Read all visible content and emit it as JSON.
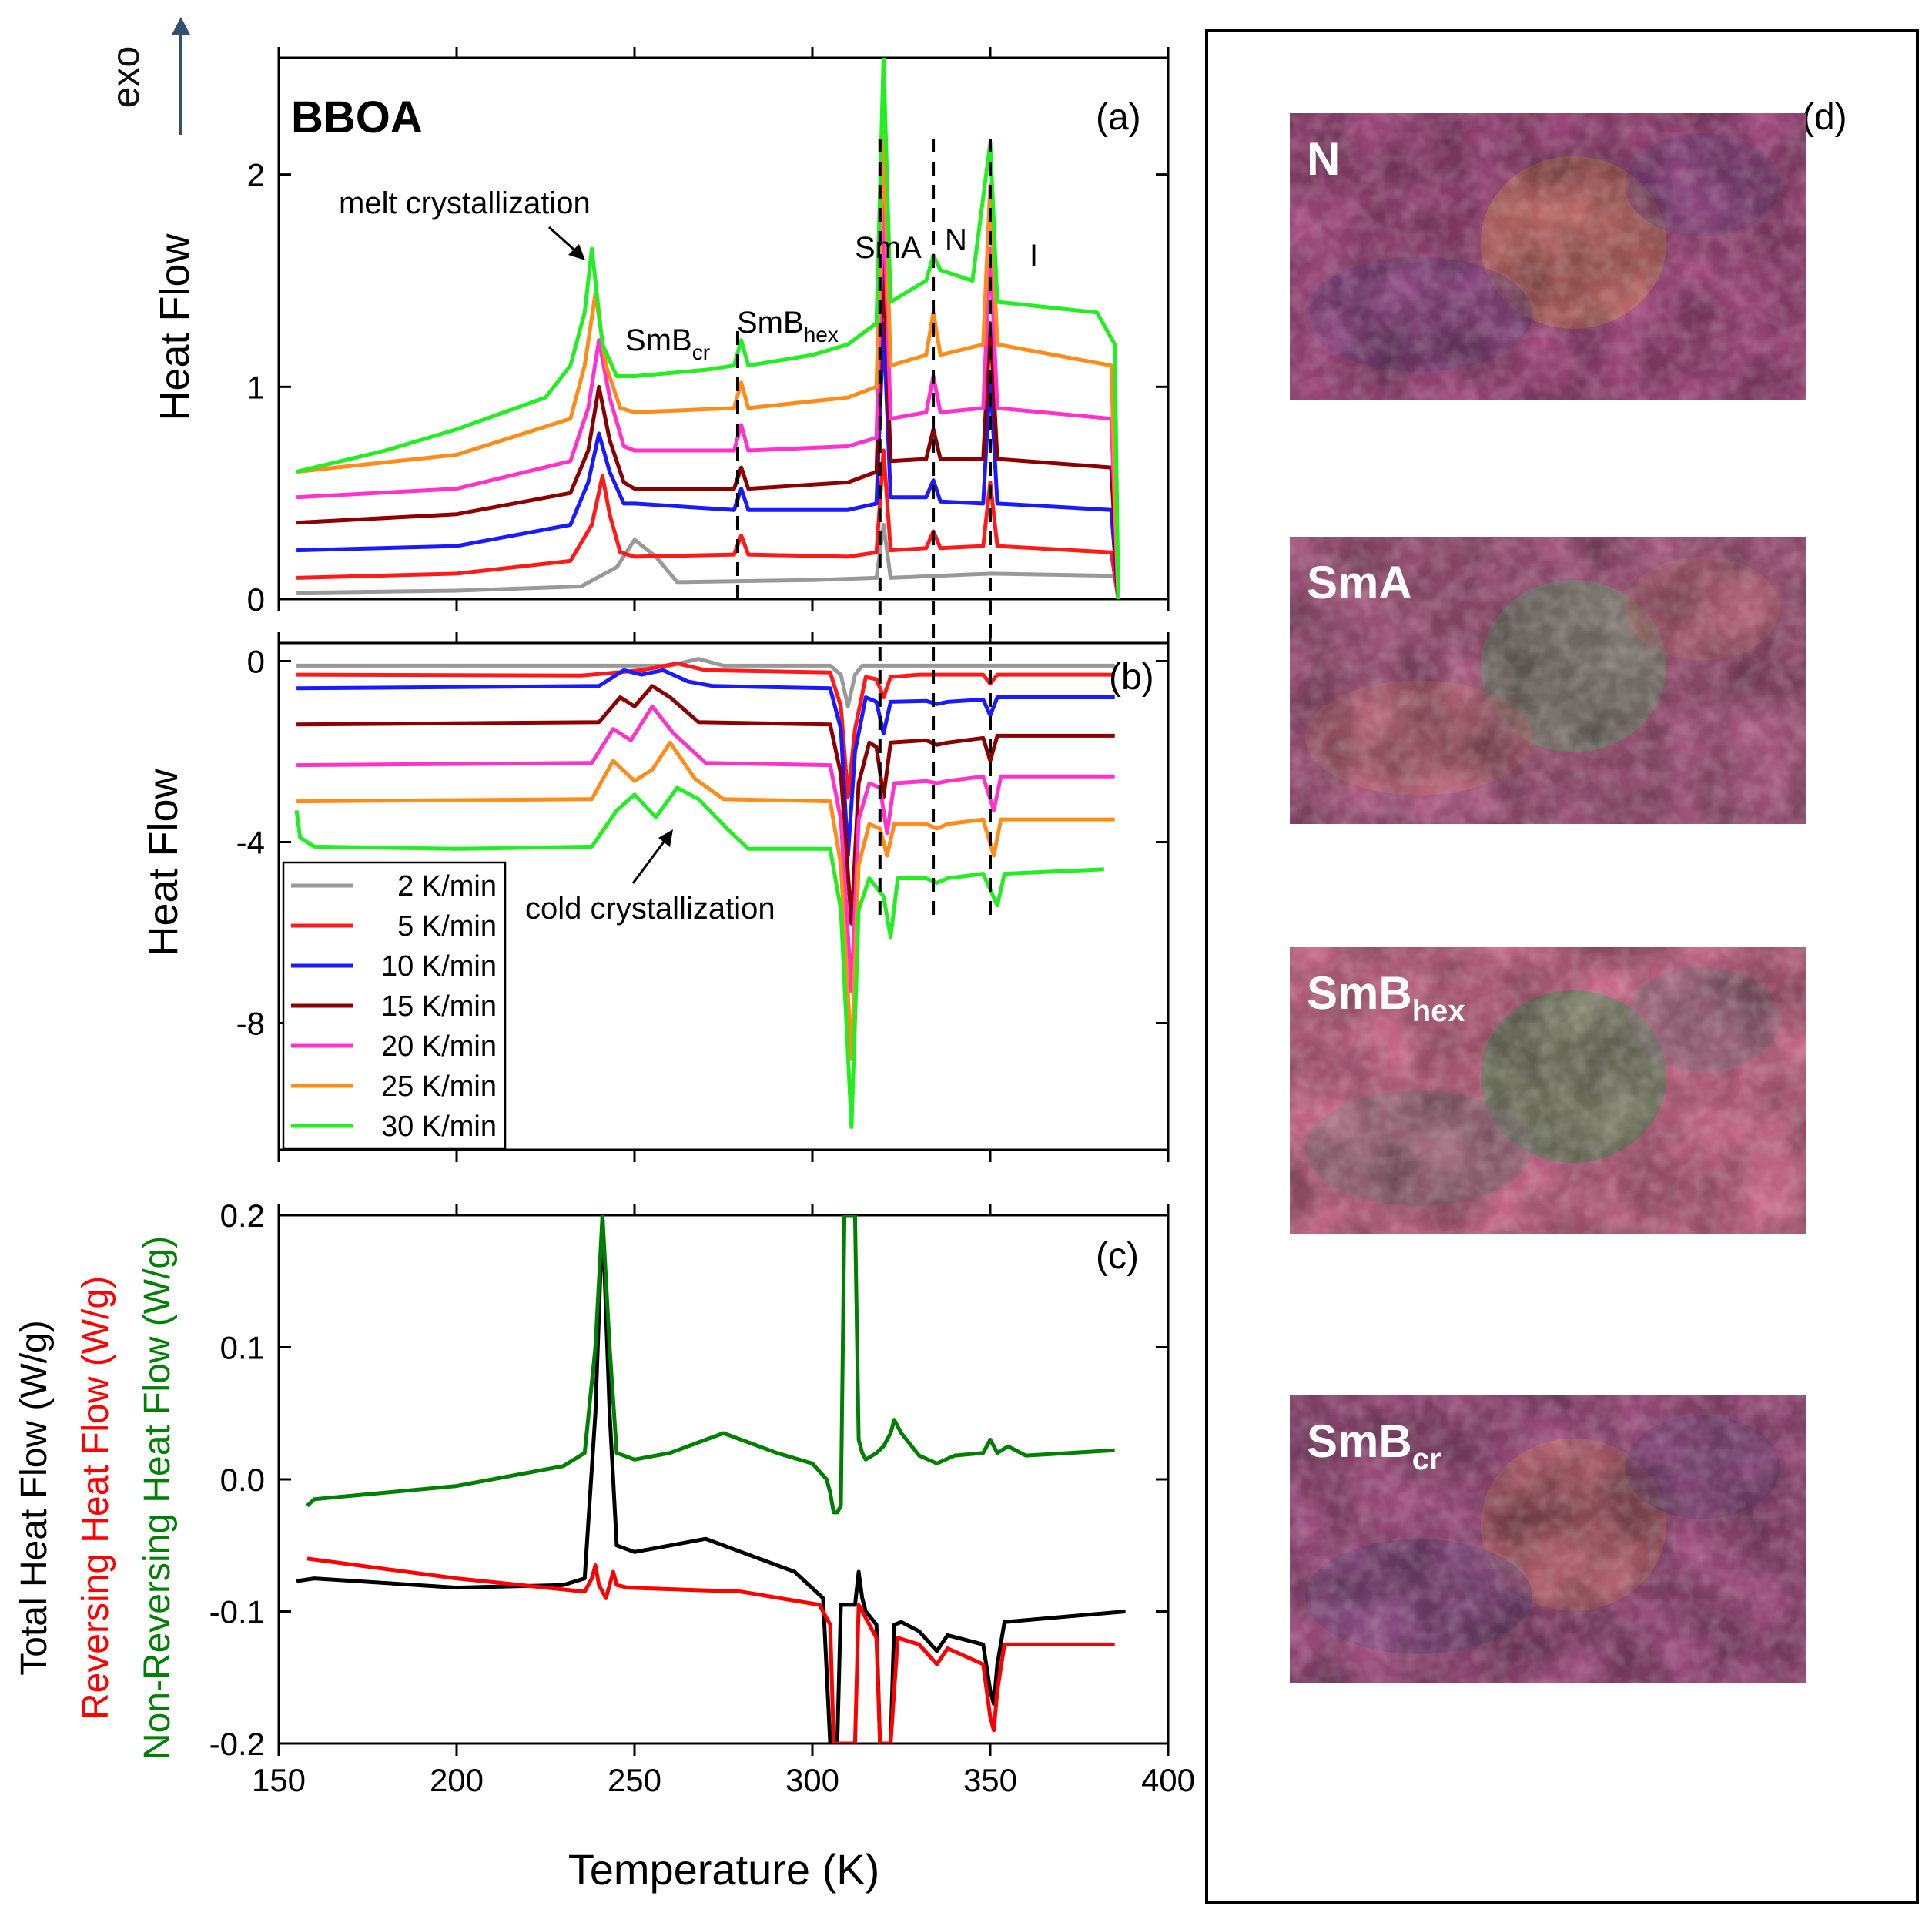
{
  "chart_data": [
    {
      "type": "line",
      "panel_label": "(a)",
      "title": "BBOA",
      "ylabel": "Heat Flow",
      "exo_label": "exo",
      "xlim": [
        150,
        400
      ],
      "ylim": [
        0,
        2.55
      ],
      "yticks": [
        "0",
        "1",
        "2"
      ],
      "ytick_values": [
        0,
        1,
        2
      ],
      "annotations": {
        "melt": "melt crystallization",
        "smbcr_base": "SmB",
        "smbcr_sub": "cr",
        "smbhex_base": "SmB",
        "smbhex_sub": "hex",
        "sma": "SmA",
        "n": "N",
        "i": "I"
      },
      "transition_lines_K": [
        279,
        319,
        334,
        350
      ],
      "series": [
        {
          "name": "2 K/min",
          "color": "#999999",
          "x": [
            155,
            200,
            235,
            245,
            250,
            256,
            262,
            300,
            318,
            320,
            322,
            350,
            385,
            386
          ],
          "y": [
            0.03,
            0.04,
            0.06,
            0.15,
            0.28,
            0.2,
            0.08,
            0.09,
            0.1,
            0.35,
            0.1,
            0.12,
            0.11,
            0
          ]
        },
        {
          "name": "5 K/min",
          "color": "#ff1a1a",
          "x": [
            155,
            200,
            232,
            238,
            241,
            243,
            246,
            250,
            278,
            280,
            282,
            310,
            318,
            320,
            322,
            332,
            334,
            336,
            348,
            350,
            352,
            384,
            386
          ],
          "y": [
            0.1,
            0.12,
            0.18,
            0.35,
            0.58,
            0.4,
            0.22,
            0.2,
            0.21,
            0.3,
            0.21,
            0.2,
            0.22,
            0.7,
            0.23,
            0.24,
            0.32,
            0.24,
            0.25,
            0.55,
            0.25,
            0.22,
            0
          ]
        },
        {
          "name": "10 K/min",
          "color": "#1a1aff",
          "x": [
            155,
            200,
            232,
            237,
            240,
            243,
            247,
            250,
            278,
            280,
            282,
            310,
            318,
            320,
            322,
            332,
            334,
            336,
            348,
            350,
            352,
            384,
            386
          ],
          "y": [
            0.23,
            0.25,
            0.35,
            0.55,
            0.78,
            0.6,
            0.45,
            0.45,
            0.42,
            0.52,
            0.42,
            0.42,
            0.45,
            1.3,
            0.48,
            0.48,
            0.56,
            0.46,
            0.45,
            1.05,
            0.45,
            0.42,
            0
          ]
        },
        {
          "name": "15 K/min",
          "color": "#8b0000",
          "x": [
            155,
            200,
            232,
            237,
            240,
            243,
            247,
            250,
            278,
            280,
            282,
            310,
            318,
            320,
            322,
            332,
            334,
            336,
            348,
            350,
            352,
            384,
            386
          ],
          "y": [
            0.36,
            0.4,
            0.5,
            0.7,
            1.0,
            0.75,
            0.55,
            0.52,
            0.52,
            0.62,
            0.52,
            0.55,
            0.6,
            1.6,
            0.65,
            0.66,
            0.8,
            0.66,
            0.66,
            1.3,
            0.66,
            0.62,
            0
          ]
        },
        {
          "name": "20 K/min",
          "color": "#ff33cc",
          "x": [
            155,
            200,
            232,
            237,
            240,
            243,
            247,
            250,
            278,
            280,
            282,
            310,
            318,
            320,
            322,
            332,
            334,
            336,
            348,
            350,
            352,
            384,
            386
          ],
          "y": [
            0.48,
            0.52,
            0.65,
            0.9,
            1.22,
            0.95,
            0.72,
            0.7,
            0.7,
            0.82,
            0.7,
            0.72,
            0.76,
            1.9,
            0.85,
            0.88,
            1.05,
            0.88,
            0.9,
            1.65,
            0.9,
            0.85,
            0
          ]
        },
        {
          "name": "25 K/min",
          "color": "#ff8c1a",
          "x": [
            155,
            200,
            232,
            236,
            239,
            242,
            246,
            250,
            278,
            280,
            282,
            310,
            318,
            320,
            322,
            332,
            334,
            336,
            348,
            350,
            352,
            384,
            386
          ],
          "y": [
            0.6,
            0.68,
            0.85,
            1.1,
            1.44,
            1.1,
            0.9,
            0.88,
            0.9,
            1.02,
            0.9,
            0.95,
            1.0,
            2.2,
            1.1,
            1.15,
            1.35,
            1.15,
            1.2,
            1.95,
            1.2,
            1.1,
            0
          ]
        },
        {
          "name": "30 K/min",
          "color": "#22ee22",
          "x": [
            155,
            180,
            200,
            225,
            232,
            236,
            238,
            241,
            245,
            250,
            270,
            278,
            280,
            282,
            300,
            310,
            318,
            320,
            322,
            332,
            334,
            336,
            345,
            350,
            352,
            380,
            385,
            386
          ],
          "y": [
            0.6,
            0.7,
            0.8,
            0.95,
            1.1,
            1.35,
            1.65,
            1.2,
            1.05,
            1.05,
            1.08,
            1.1,
            1.22,
            1.1,
            1.15,
            1.2,
            1.3,
            2.55,
            1.4,
            1.5,
            1.62,
            1.55,
            1.5,
            2.15,
            1.4,
            1.35,
            1.2,
            0
          ]
        }
      ]
    },
    {
      "type": "line",
      "panel_label": "(b)",
      "ylabel": "Heat Flow",
      "xlim": [
        150,
        400
      ],
      "ylim": [
        -10.8,
        0.4
      ],
      "yticks": [
        "0",
        "-4",
        "-8"
      ],
      "ytick_values": [
        0,
        -4,
        -8
      ],
      "annotations": {
        "cold": "cold crystallization"
      },
      "legend": [
        "2 K/min",
        "5 K/min",
        "10 K/min",
        "15 K/min",
        "20 K/min",
        "25 K/min",
        "30 K/min"
      ],
      "series": [
        {
          "name": "2 K/min",
          "color": "#999999",
          "x": [
            155,
            260,
            268,
            275,
            305,
            308,
            310,
            312,
            314,
            320,
            330,
            385
          ],
          "y": [
            -0.1,
            -0.1,
            0.05,
            -0.1,
            -0.1,
            -0.3,
            -1.0,
            -0.3,
            -0.1,
            -0.1,
            -0.1,
            -0.1
          ]
        },
        {
          "name": "5 K/min",
          "color": "#ff1a1a",
          "x": [
            155,
            235,
            245,
            252,
            262,
            270,
            305,
            308,
            310,
            312,
            315,
            318,
            320,
            322,
            330,
            348,
            350,
            352,
            385
          ],
          "y": [
            -0.3,
            -0.32,
            -0.25,
            -0.2,
            -0.05,
            -0.2,
            -0.25,
            -1.0,
            -3.0,
            -1.5,
            -0.35,
            -0.4,
            -0.8,
            -0.35,
            -0.3,
            -0.3,
            -0.5,
            -0.3,
            -0.3
          ]
        },
        {
          "name": "10 K/min",
          "color": "#1a1aff",
          "x": [
            155,
            240,
            247,
            252,
            258,
            265,
            272,
            305,
            308,
            310,
            312,
            315,
            318,
            320,
            322,
            332,
            335,
            338,
            348,
            350,
            352,
            385
          ],
          "y": [
            -0.6,
            -0.55,
            -0.2,
            -0.3,
            -0.2,
            -0.45,
            -0.55,
            -0.6,
            -1.5,
            -4.3,
            -2.0,
            -0.8,
            -0.9,
            -1.6,
            -0.9,
            -0.88,
            -0.95,
            -0.9,
            -0.85,
            -1.2,
            -0.8,
            -0.8
          ]
        },
        {
          "name": "15 K/min",
          "color": "#8b0000",
          "x": [
            155,
            240,
            246,
            250,
            255,
            260,
            268,
            305,
            308,
            311,
            313,
            316,
            318,
            320,
            322,
            332,
            335,
            338,
            348,
            350,
            352,
            385
          ],
          "y": [
            -1.4,
            -1.35,
            -0.8,
            -1.0,
            -0.55,
            -0.8,
            -1.35,
            -1.4,
            -2.5,
            -5.8,
            -2.7,
            -1.8,
            -1.9,
            -3.0,
            -1.8,
            -1.75,
            -1.85,
            -1.8,
            -1.7,
            -2.2,
            -1.65,
            -1.65
          ]
        },
        {
          "name": "20 K/min",
          "color": "#ff33cc",
          "x": [
            155,
            238,
            244,
            249,
            255,
            261,
            270,
            305,
            308,
            311,
            313,
            316,
            319,
            321,
            323,
            332,
            335,
            338,
            348,
            351,
            353,
            385
          ],
          "y": [
            -2.3,
            -2.25,
            -1.5,
            -1.75,
            -1.0,
            -1.6,
            -2.25,
            -2.3,
            -3.5,
            -7.3,
            -3.5,
            -2.7,
            -2.8,
            -3.8,
            -2.7,
            -2.65,
            -2.7,
            -2.65,
            -2.55,
            -3.3,
            -2.55,
            -2.55
          ]
        },
        {
          "name": "25 K/min",
          "color": "#ff8c1a",
          "x": [
            155,
            238,
            244,
            250,
            255,
            260,
            267,
            275,
            305,
            308,
            311,
            313,
            316,
            319,
            321,
            323,
            332,
            335,
            338,
            348,
            351,
            353,
            385
          ],
          "y": [
            -3.1,
            -3.05,
            -2.2,
            -2.65,
            -2.4,
            -1.8,
            -2.6,
            -3.05,
            -3.1,
            -4.5,
            -8.8,
            -4.5,
            -3.6,
            -3.7,
            -4.3,
            -3.6,
            -3.6,
            -3.7,
            -3.6,
            -3.5,
            -4.3,
            -3.5,
            -3.5
          ]
        },
        {
          "name": "30 K/min",
          "color": "#22ee22",
          "x": [
            155,
            156,
            160,
            200,
            238,
            245,
            250,
            256,
            262,
            268,
            276,
            282,
            305,
            308,
            311,
            313,
            316,
            320,
            322,
            324,
            332,
            335,
            338,
            348,
            352,
            354,
            382
          ],
          "y": [
            -3.3,
            -3.9,
            -4.1,
            -4.15,
            -4.1,
            -3.3,
            -2.95,
            -3.45,
            -2.8,
            -3.05,
            -3.7,
            -4.15,
            -4.15,
            -5.5,
            -10.3,
            -5.5,
            -4.8,
            -5.2,
            -6.1,
            -4.8,
            -4.8,
            -4.9,
            -4.8,
            -4.7,
            -5.4,
            -4.7,
            -4.6
          ]
        }
      ]
    },
    {
      "type": "line",
      "panel_label": "(c)",
      "xlabel": "Temperature (K)",
      "ylabel_lines": [
        "Total Heat Flow (W/g)",
        "Reversing Heat Flow (W/g)",
        "Non-Reversing Heat Flow (W/g)"
      ],
      "xlim": [
        150,
        400
      ],
      "ylim": [
        -0.2,
        0.2
      ],
      "xticks": [
        "150",
        "200",
        "250",
        "300",
        "350",
        "400"
      ],
      "xtick_values": [
        150,
        200,
        250,
        300,
        350,
        400
      ],
      "yticks": [
        "0.2",
        "0.1",
        "0.0",
        "-0.1",
        "-0.2"
      ],
      "ytick_values": [
        0.2,
        0.1,
        0.0,
        -0.1,
        -0.2
      ],
      "series": [
        {
          "name": "Total Heat Flow",
          "color": "#000000",
          "x": [
            155,
            160,
            200,
            230,
            236,
            239,
            241,
            243,
            245,
            250,
            260,
            270,
            280,
            295,
            303,
            305,
            307,
            308,
            312,
            313,
            314,
            315,
            318,
            319,
            320,
            322,
            323,
            325,
            330,
            335,
            338,
            348,
            350,
            351,
            352,
            354,
            388
          ],
          "y": [
            -0.077,
            -0.075,
            -0.082,
            -0.08,
            -0.075,
            0.05,
            0.2,
            0.05,
            -0.05,
            -0.055,
            -0.05,
            -0.045,
            -0.055,
            -0.07,
            -0.09,
            -0.2,
            -0.2,
            -0.095,
            -0.095,
            -0.07,
            -0.09,
            -0.1,
            -0.11,
            -0.2,
            -0.2,
            -0.2,
            -0.11,
            -0.108,
            -0.115,
            -0.13,
            -0.118,
            -0.125,
            -0.16,
            -0.17,
            -0.14,
            -0.108,
            -0.1
          ]
        },
        {
          "name": "Reversing Heat Flow",
          "color": "#ff0000",
          "x": [
            158,
            200,
            236,
            238,
            239,
            240,
            242,
            244,
            245,
            248,
            280,
            302,
            305,
            306,
            312,
            313,
            314,
            318,
            319,
            320,
            322,
            324,
            330,
            335,
            338,
            348,
            350,
            351,
            352,
            354,
            385
          ],
          "y": [
            -0.06,
            -0.075,
            -0.085,
            -0.075,
            -0.065,
            -0.08,
            -0.09,
            -0.07,
            -0.08,
            -0.082,
            -0.085,
            -0.095,
            -0.11,
            -0.2,
            -0.2,
            -0.095,
            -0.1,
            -0.12,
            -0.2,
            -0.2,
            -0.2,
            -0.12,
            -0.125,
            -0.14,
            -0.128,
            -0.14,
            -0.18,
            -0.19,
            -0.16,
            -0.125,
            -0.125
          ]
        },
        {
          "name": "Non-Reversing Heat Flow",
          "color": "#008000",
          "x": [
            158,
            160,
            200,
            230,
            236,
            239,
            241,
            243,
            245,
            250,
            260,
            275,
            290,
            300,
            304,
            305,
            306,
            307,
            308,
            309,
            310,
            312,
            313,
            314,
            315,
            318,
            320,
            322,
            323,
            325,
            330,
            335,
            340,
            348,
            350,
            352,
            355,
            360,
            385
          ],
          "y": [
            -0.02,
            -0.015,
            -0.005,
            0.01,
            0.02,
            0.1,
            0.2,
            0.1,
            0.02,
            0.015,
            0.02,
            0.035,
            0.02,
            0.012,
            0.0,
            -0.01,
            -0.025,
            -0.025,
            -0.02,
            0.2,
            0.2,
            0.2,
            0.03,
            0.02,
            0.015,
            0.02,
            0.025,
            0.035,
            0.045,
            0.035,
            0.018,
            0.012,
            0.018,
            0.02,
            0.03,
            0.02,
            0.025,
            0.018,
            0.022
          ]
        }
      ]
    }
  ],
  "micrographs": {
    "panel_label": "(d)",
    "items": [
      {
        "label_base": "N",
        "label_sub": "",
        "colors": {
          "base": "#a44c80",
          "accent1": "#c88050",
          "accent2": "#7a4a8a"
        }
      },
      {
        "label_base": "SmA",
        "label_sub": "",
        "colors": {
          "base": "#a85a80",
          "accent1": "#6a9a70",
          "accent2": "#c07070"
        }
      },
      {
        "label_base": "SmB",
        "label_sub": "hex",
        "colors": {
          "base": "#c86a8a",
          "accent1": "#4a9a5a",
          "accent2": "#8a7a80"
        }
      },
      {
        "label_base": "SmB",
        "label_sub": "cr",
        "colors": {
          "base": "#a05080",
          "accent1": "#c07060",
          "accent2": "#704a80"
        }
      }
    ]
  }
}
